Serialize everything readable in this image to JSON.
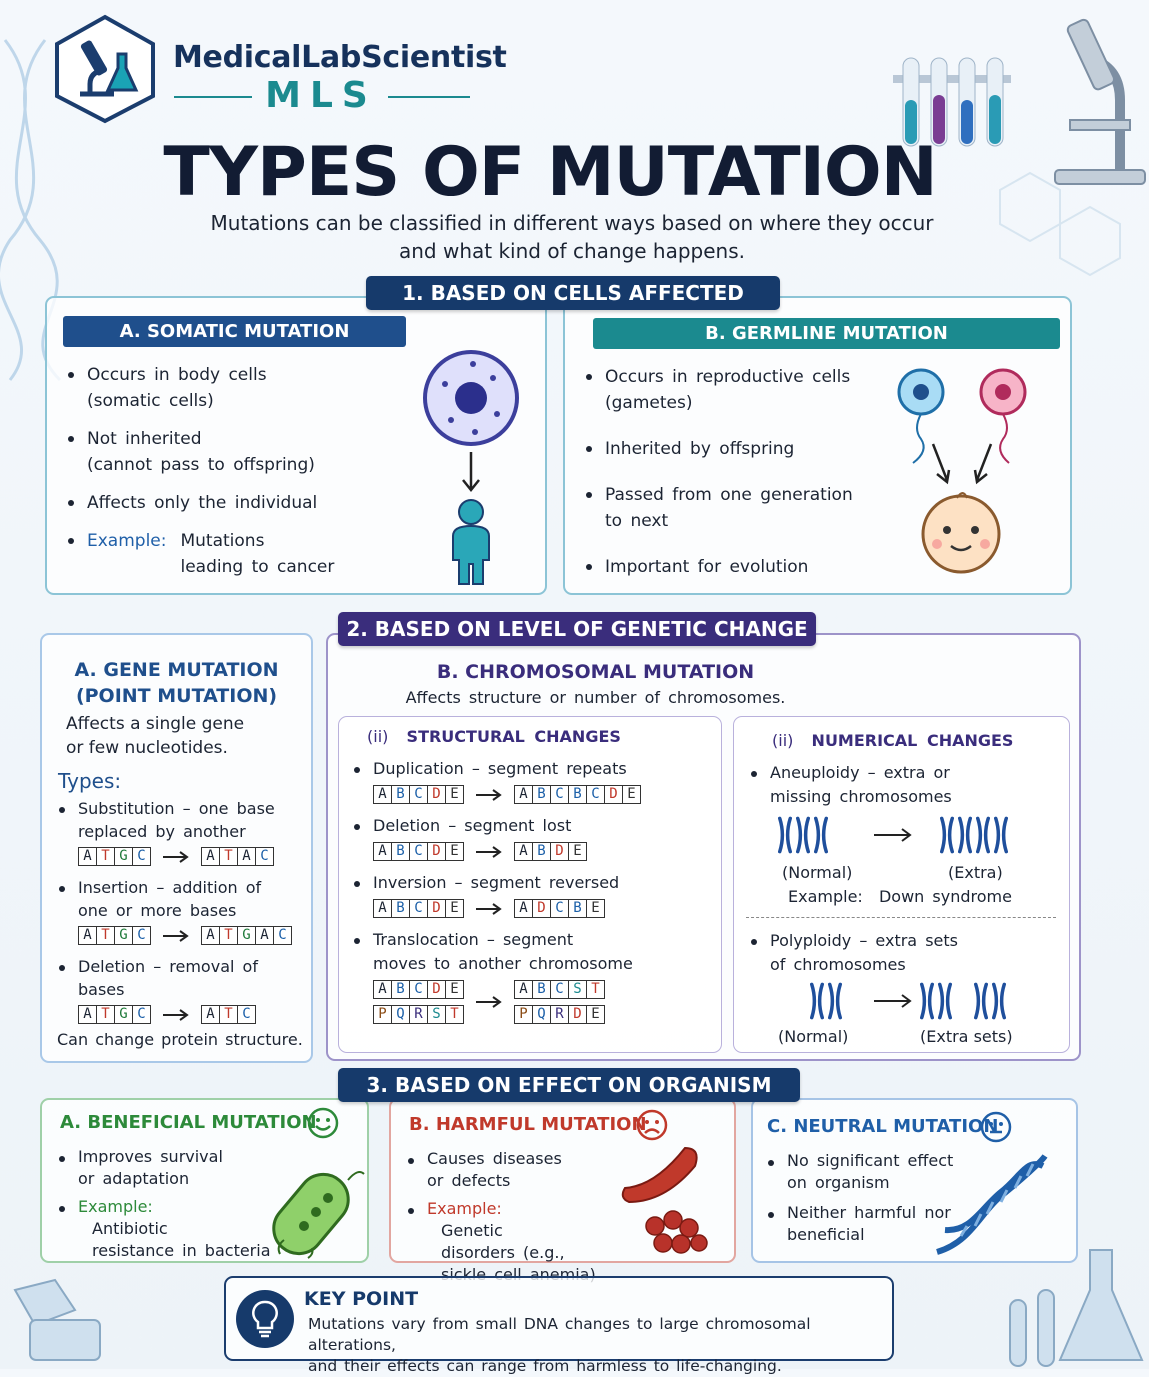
{
  "header": {
    "brand": "MedicalLabScientist",
    "brand_short": "MLS",
    "title": "TYPES OF MUTATION",
    "subtitle": [
      "Mutations can be classified in different ways based on where they occur",
      "and what kind of change happens."
    ]
  },
  "cells_affected": {
    "heading": "1. BASED ON CELLS AFFECTED",
    "somatic": {
      "heading": "A. SOMATIC MUTATION",
      "bullets": [
        [
          "Occurs in body cells",
          "(somatic cells)"
        ],
        [
          "Not inherited",
          "(cannot pass to offspring)"
        ],
        [
          "Affects only the individual"
        ]
      ],
      "example": {
        "label": "Example:",
        "lines": [
          "Mutations",
          "leading to cancer"
        ]
      }
    },
    "germline": {
      "heading": "B. GERMLINE MUTATION",
      "bullets": [
        [
          "Occurs in reproductive cells",
          "(gametes)"
        ],
        [
          "Inherited by offspring"
        ],
        [
          "Passed from one generation",
          "to next"
        ],
        [
          "Important for evolution"
        ]
      ]
    }
  },
  "genetic_change": {
    "heading": "2. BASED ON LEVEL OF GENETIC CHANGE",
    "gene": {
      "heading": [
        "A. GENE MUTATION",
        "(POINT MUTATION)"
      ],
      "description": [
        "Affects a single gene",
        "or few nucleotides."
      ],
      "types_label": "Types:",
      "types": [
        {
          "lines": [
            "Substitution – one base",
            "replaced by another"
          ],
          "before": [
            "A",
            "T",
            "G",
            "C"
          ],
          "after": [
            "A",
            "T",
            "A",
            "C"
          ]
        },
        {
          "lines": [
            "Insertion – addition of",
            "one or more bases"
          ],
          "before": [
            "A",
            "T",
            "G",
            "C"
          ],
          "after": [
            "A",
            "T",
            "G",
            "A",
            "C"
          ]
        },
        {
          "lines": [
            "Deletion – removal of",
            "bases"
          ],
          "before": [
            "A",
            "T",
            "G",
            "C"
          ],
          "after": [
            "A",
            "T",
            "C"
          ]
        }
      ],
      "note": "Can change protein structure."
    },
    "chromosomal": {
      "heading": "B. CHROMOSOMAL MUTATION",
      "description": "Affects structure or number of chromosomes.",
      "structural": {
        "number": "(ii)",
        "heading": "STRUCTURAL CHANGES",
        "items": [
          {
            "lines": [
              "Duplication – segment repeats"
            ],
            "before": [
              "A",
              "B",
              "C",
              "D",
              "E"
            ],
            "after": [
              "A",
              "B",
              "C",
              "B",
              "C",
              "D",
              "E"
            ]
          },
          {
            "lines": [
              "Deletion – segment lost"
            ],
            "before": [
              "A",
              "B",
              "C",
              "D",
              "E"
            ],
            "after": [
              "A",
              "B",
              "D",
              "E"
            ]
          },
          {
            "lines": [
              "Inversion – segment reversed"
            ],
            "before": [
              "A",
              "B",
              "C",
              "D",
              "E"
            ],
            "after": [
              "A",
              "D",
              "C",
              "B",
              "E"
            ]
          },
          {
            "lines": [
              "Translocation – segment",
              "moves to another chromosome"
            ],
            "before": [
              [
                "A",
                "B",
                "C",
                "D",
                "E"
              ],
              [
                "P",
                "Q",
                "R",
                "S",
                "T"
              ]
            ],
            "after": [
              [
                "A",
                "B",
                "C",
                "S",
                "T"
              ],
              [
                "P",
                "Q",
                "R",
                "D",
                "E"
              ]
            ]
          }
        ]
      },
      "numerical": {
        "number": "(ii)",
        "heading": "NUMERICAL CHANGES",
        "aneuploidy": {
          "lines": [
            "Aneuploidy – extra or",
            "missing chromosomes"
          ],
          "normal": "(Normal)",
          "changed": "(Extra)",
          "example": {
            "label": "Example:",
            "text": "Down syndrome"
          }
        },
        "polyploidy": {
          "lines": [
            "Polyploidy – extra sets",
            "of chromosomes"
          ],
          "normal": "(Normal)",
          "changed": "(Extra sets)"
        }
      }
    }
  },
  "effect": {
    "heading": "3. BASED ON EFFECT ON ORGANISM",
    "beneficial": {
      "heading": "A. BENEFICIAL MUTATION",
      "bullets": [
        [
          "Improves survival",
          "or adaptation"
        ]
      ],
      "example": {
        "label": "Example:",
        "lines": [
          "Antibiotic",
          "resistance in bacteria"
        ]
      }
    },
    "harmful": {
      "heading": "B. HARMFUL MUTATION",
      "bullets": [
        [
          "Causes diseases",
          "or defects"
        ]
      ],
      "example": {
        "label": "Example:",
        "lines": [
          "Genetic",
          "disorders (e.g.,",
          "sickle cell anemia)"
        ]
      }
    },
    "neutral": {
      "heading": "C. NEUTRAL MUTATION",
      "bullets": [
        [
          "No significant effect",
          "on organism"
        ],
        [
          "Neither harmful nor",
          "beneficial"
        ]
      ]
    }
  },
  "key_point": {
    "heading": "KEY POINT",
    "lines": [
      "Mutations vary from small DNA changes to large chromosomal alterations,",
      "and their effects can range from harmless to life-changing."
    ]
  }
}
